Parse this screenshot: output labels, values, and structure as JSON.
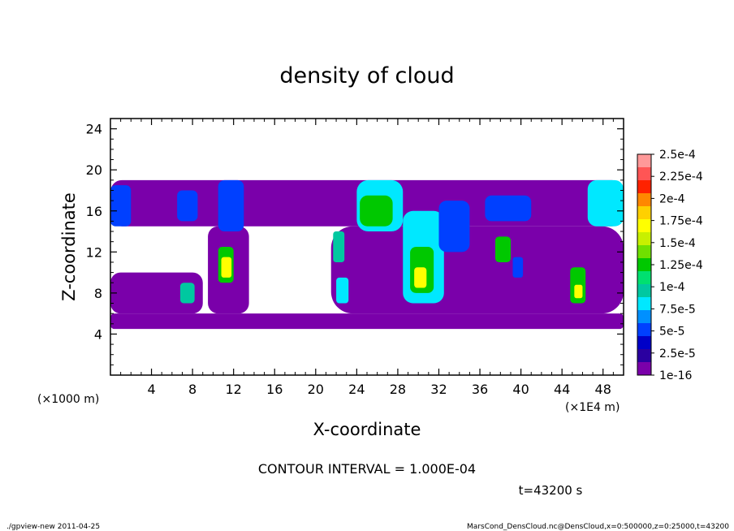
{
  "chart_data": {
    "type": "heatmap",
    "title": "density of cloud",
    "xlabel": "X-coordinate",
    "ylabel": "Z-coordinate",
    "x_unit": "(×1E4 m)",
    "y_unit": "(×1000 m)",
    "xlim": [
      0,
      50
    ],
    "ylim": [
      0,
      25
    ],
    "x_ticks": [
      4,
      8,
      12,
      16,
      20,
      24,
      28,
      32,
      36,
      40,
      44,
      48
    ],
    "y_ticks": [
      4,
      8,
      12,
      16,
      20,
      24
    ],
    "colorbar": {
      "labels": [
        "2.5e-4",
        "2.25e-4",
        "2e-4",
        "1.75e-4",
        "1.5e-4",
        "1.25e-4",
        "1e-4",
        "7.5e-5",
        "5e-5",
        "2.5e-5",
        "1e-16"
      ],
      "colors": [
        "#ff9999",
        "#ff5555",
        "#ff2200",
        "#ff8800",
        "#ffd000",
        "#ffff00",
        "#c8f000",
        "#70e000",
        "#00c800",
        "#00e070",
        "#00c8a0",
        "#00e8ff",
        "#0090ff",
        "#0040ff",
        "#0000c8",
        "#2a00a0",
        "#7a00aa"
      ]
    },
    "regions": [
      {
        "x0": 0.0,
        "x1": 50.0,
        "z0": 4.5,
        "z1": 6.0,
        "level": "1e-16"
      },
      {
        "x0": 0.0,
        "x1": 50.0,
        "z0": 14.5,
        "z1": 19.0,
        "level": "1e-16"
      },
      {
        "x0": 0.0,
        "x1": 9.0,
        "z0": 6.0,
        "z1": 10.0,
        "level": "1e-16"
      },
      {
        "x0": 21.5,
        "x1": 50.0,
        "z0": 6.0,
        "z1": 14.5,
        "level": "1e-16"
      },
      {
        "x0": 9.5,
        "x1": 13.5,
        "z0": 6.0,
        "z1": 14.5,
        "level": "1e-16"
      },
      {
        "x0": 0.0,
        "x1": 2.0,
        "z0": 14.5,
        "z1": 18.5,
        "level": "5e-5"
      },
      {
        "x0": 6.5,
        "x1": 8.5,
        "z0": 15.0,
        "z1": 18.0,
        "level": "5e-5"
      },
      {
        "x0": 10.5,
        "x1": 13.0,
        "z0": 14.0,
        "z1": 19.0,
        "level": "5e-5"
      },
      {
        "x0": 10.5,
        "x1": 12.0,
        "z0": 9.0,
        "z1": 12.5,
        "level": "1.25e-4"
      },
      {
        "x0": 10.8,
        "x1": 11.8,
        "z0": 9.5,
        "z1": 11.5,
        "level": "1.75e-4"
      },
      {
        "x0": 6.8,
        "x1": 8.2,
        "z0": 7.0,
        "z1": 9.0,
        "level": "1e-4"
      },
      {
        "x0": 21.7,
        "x1": 22.8,
        "z0": 11.0,
        "z1": 14.0,
        "level": "1e-4"
      },
      {
        "x0": 22.0,
        "x1": 23.2,
        "z0": 7.0,
        "z1": 9.5,
        "level": "7.5e-5"
      },
      {
        "x0": 24.0,
        "x1": 28.5,
        "z0": 14.0,
        "z1": 19.0,
        "level": "7.5e-5"
      },
      {
        "x0": 24.3,
        "x1": 27.5,
        "z0": 14.5,
        "z1": 17.5,
        "level": "1.25e-4"
      },
      {
        "x0": 28.5,
        "x1": 32.5,
        "z0": 7.0,
        "z1": 16.0,
        "level": "7.5e-5"
      },
      {
        "x0": 29.2,
        "x1": 31.5,
        "z0": 8.0,
        "z1": 12.5,
        "level": "1.25e-4"
      },
      {
        "x0": 29.6,
        "x1": 30.8,
        "z0": 8.5,
        "z1": 10.5,
        "level": "1.75e-4"
      },
      {
        "x0": 32.0,
        "x1": 35.0,
        "z0": 12.0,
        "z1": 17.0,
        "level": "5e-5"
      },
      {
        "x0": 37.5,
        "x1": 39.0,
        "z0": 11.0,
        "z1": 13.5,
        "level": "1.25e-4"
      },
      {
        "x0": 39.2,
        "x1": 40.2,
        "z0": 9.5,
        "z1": 11.5,
        "level": "5e-5"
      },
      {
        "x0": 36.5,
        "x1": 41.0,
        "z0": 15.0,
        "z1": 17.5,
        "level": "5e-5"
      },
      {
        "x0": 44.8,
        "x1": 46.3,
        "z0": 7.0,
        "z1": 10.5,
        "level": "1.25e-4"
      },
      {
        "x0": 45.2,
        "x1": 46.0,
        "z0": 7.5,
        "z1": 8.8,
        "level": "1.75e-4"
      },
      {
        "x0": 46.5,
        "x1": 50.0,
        "z0": 14.5,
        "z1": 19.0,
        "level": "7.5e-5"
      }
    ]
  },
  "contour_interval": "CONTOUR INTERVAL = 1.000E-04",
  "time_label": "t=43200 s",
  "footer_left": "./gpview-new  2011-04-25",
  "footer_right": "MarsCond_DensCloud.nc@DensCloud,x=0:500000,z=0:25000,t=43200"
}
